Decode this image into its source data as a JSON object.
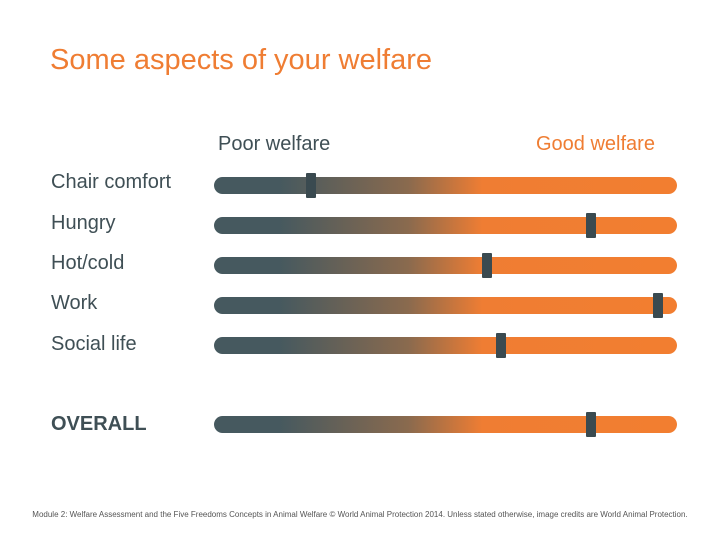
{
  "title": "Some aspects of your welfare",
  "scale": {
    "left_label": "Poor welfare",
    "right_label": "Good welfare",
    "left_color": "#46595f",
    "right_color": "#ef7d33"
  },
  "rows": [
    {
      "label": "Chair comfort",
      "level": 0.21
    },
    {
      "label": "Hungry",
      "level": 0.815
    },
    {
      "label": "Hot/cold",
      "level": 0.59
    },
    {
      "label": "Work",
      "level": 0.96
    },
    {
      "label": "Social life",
      "level": 0.62
    }
  ],
  "overall": {
    "label": "OVERALL",
    "level": 0.815
  },
  "footer": "Module 2: Welfare Assessment and the Five Freedoms  Concepts in Animal Welfare © World Animal Protection 2014. Unless stated otherwise, image credits are World Animal Protection."
}
